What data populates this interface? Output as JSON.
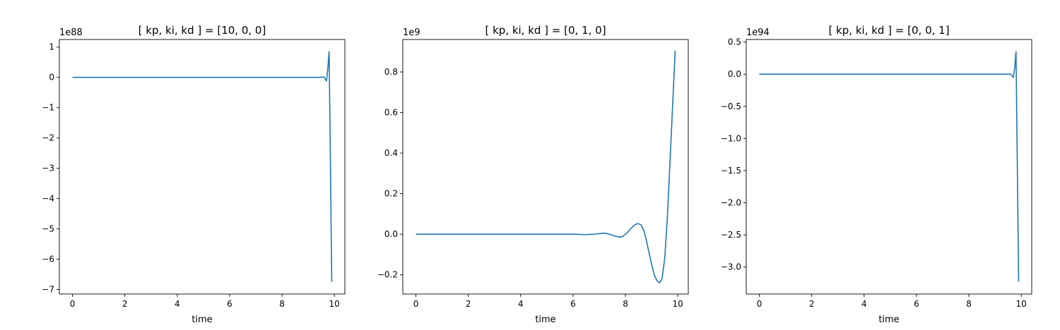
{
  "chart_data": [
    {
      "type": "line",
      "title": "[ kp, ki, kd ] = [10, 0, 0]",
      "xlabel": "time",
      "ylabel": "",
      "y_offset_text": "1e88",
      "xlim": [
        -0.5,
        10.4
      ],
      "ylim": [
        -7.15,
        1.25
      ],
      "xticks": [
        0,
        2,
        4,
        6,
        8,
        10
      ],
      "xtick_labels": [
        "0",
        "2",
        "4",
        "6",
        "8",
        "10"
      ],
      "yticks": [
        1,
        0,
        -1,
        -2,
        -3,
        -4,
        -5,
        -6,
        -7
      ],
      "ytick_labels": [
        "1",
        "0",
        "−1",
        "−2",
        "−3",
        "−4",
        "−5",
        "−6",
        "−7"
      ],
      "grid": false,
      "series": [
        {
          "color": "#1f77b4",
          "x": [
            0,
            2,
            4,
            6,
            8,
            9.5,
            9.6,
            9.7,
            9.75,
            9.8,
            9.9
          ],
          "y": [
            0,
            0,
            0,
            0,
            0,
            0,
            0.02,
            -0.12,
            0.3,
            0.85,
            -6.75
          ]
        }
      ]
    },
    {
      "type": "line",
      "title": "[ kp, ki, kd ] = [0, 1, 0]",
      "xlabel": "time",
      "ylabel": "",
      "y_offset_text": "1e9",
      "xlim": [
        -0.5,
        10.4
      ],
      "ylim": [
        -0.295,
        0.96
      ],
      "xticks": [
        0,
        2,
        4,
        6,
        8,
        10
      ],
      "xtick_labels": [
        "0",
        "2",
        "4",
        "6",
        "8",
        "10"
      ],
      "yticks": [
        0.8,
        0.6,
        0.4,
        0.2,
        0.0,
        -0.2
      ],
      "ytick_labels": [
        "0.8",
        "0.6",
        "0.4",
        "0.2",
        "0.0",
        "−0.2"
      ],
      "grid": false,
      "series": [
        {
          "color": "#1f77b4",
          "x": [
            0,
            1,
            2,
            3,
            4,
            5,
            6,
            6.5,
            6.8,
            7.0,
            7.2,
            7.4,
            7.6,
            7.8,
            7.9,
            8.0,
            8.1,
            8.2,
            8.3,
            8.4,
            8.5,
            8.6,
            8.7,
            8.8,
            8.9,
            9.0,
            9.1,
            9.2,
            9.3,
            9.4,
            9.5,
            9.6,
            9.7,
            9.8,
            9.9
          ],
          "y": [
            0,
            0,
            0,
            0,
            0,
            0,
            0,
            -0.002,
            0.0,
            0.003,
            0.005,
            0.0,
            -0.01,
            -0.015,
            -0.01,
            0.0,
            0.012,
            0.027,
            0.04,
            0.05,
            0.052,
            0.045,
            0.02,
            -0.03,
            -0.09,
            -0.15,
            -0.2,
            -0.228,
            -0.24,
            -0.218,
            -0.12,
            0.08,
            0.35,
            0.63,
            0.905
          ]
        }
      ]
    },
    {
      "type": "line",
      "title": "[ kp, ki, kd ] = [0, 0, 1]",
      "xlabel": "time",
      "ylabel": "",
      "y_offset_text": "1e94",
      "xlim": [
        -0.5,
        10.4
      ],
      "ylim": [
        -3.42,
        0.54
      ],
      "xticks": [
        0,
        2,
        4,
        6,
        8,
        10
      ],
      "xtick_labels": [
        "0",
        "2",
        "4",
        "6",
        "8",
        "10"
      ],
      "yticks": [
        0.5,
        0.0,
        -0.5,
        -1.0,
        -1.5,
        -2.0,
        -2.5,
        -3.0
      ],
      "ytick_labels": [
        "0.5",
        "0.0",
        "−0.5",
        "−1.0",
        "−1.5",
        "−2.0",
        "−2.5",
        "−3.0"
      ],
      "grid": false,
      "series": [
        {
          "color": "#1f77b4",
          "x": [
            0,
            2,
            4,
            6,
            8,
            9.5,
            9.6,
            9.7,
            9.75,
            9.8,
            9.9
          ],
          "y": [
            0,
            0,
            0,
            0,
            0,
            0,
            0.0,
            -0.05,
            0.1,
            0.35,
            -3.23
          ]
        }
      ]
    }
  ]
}
